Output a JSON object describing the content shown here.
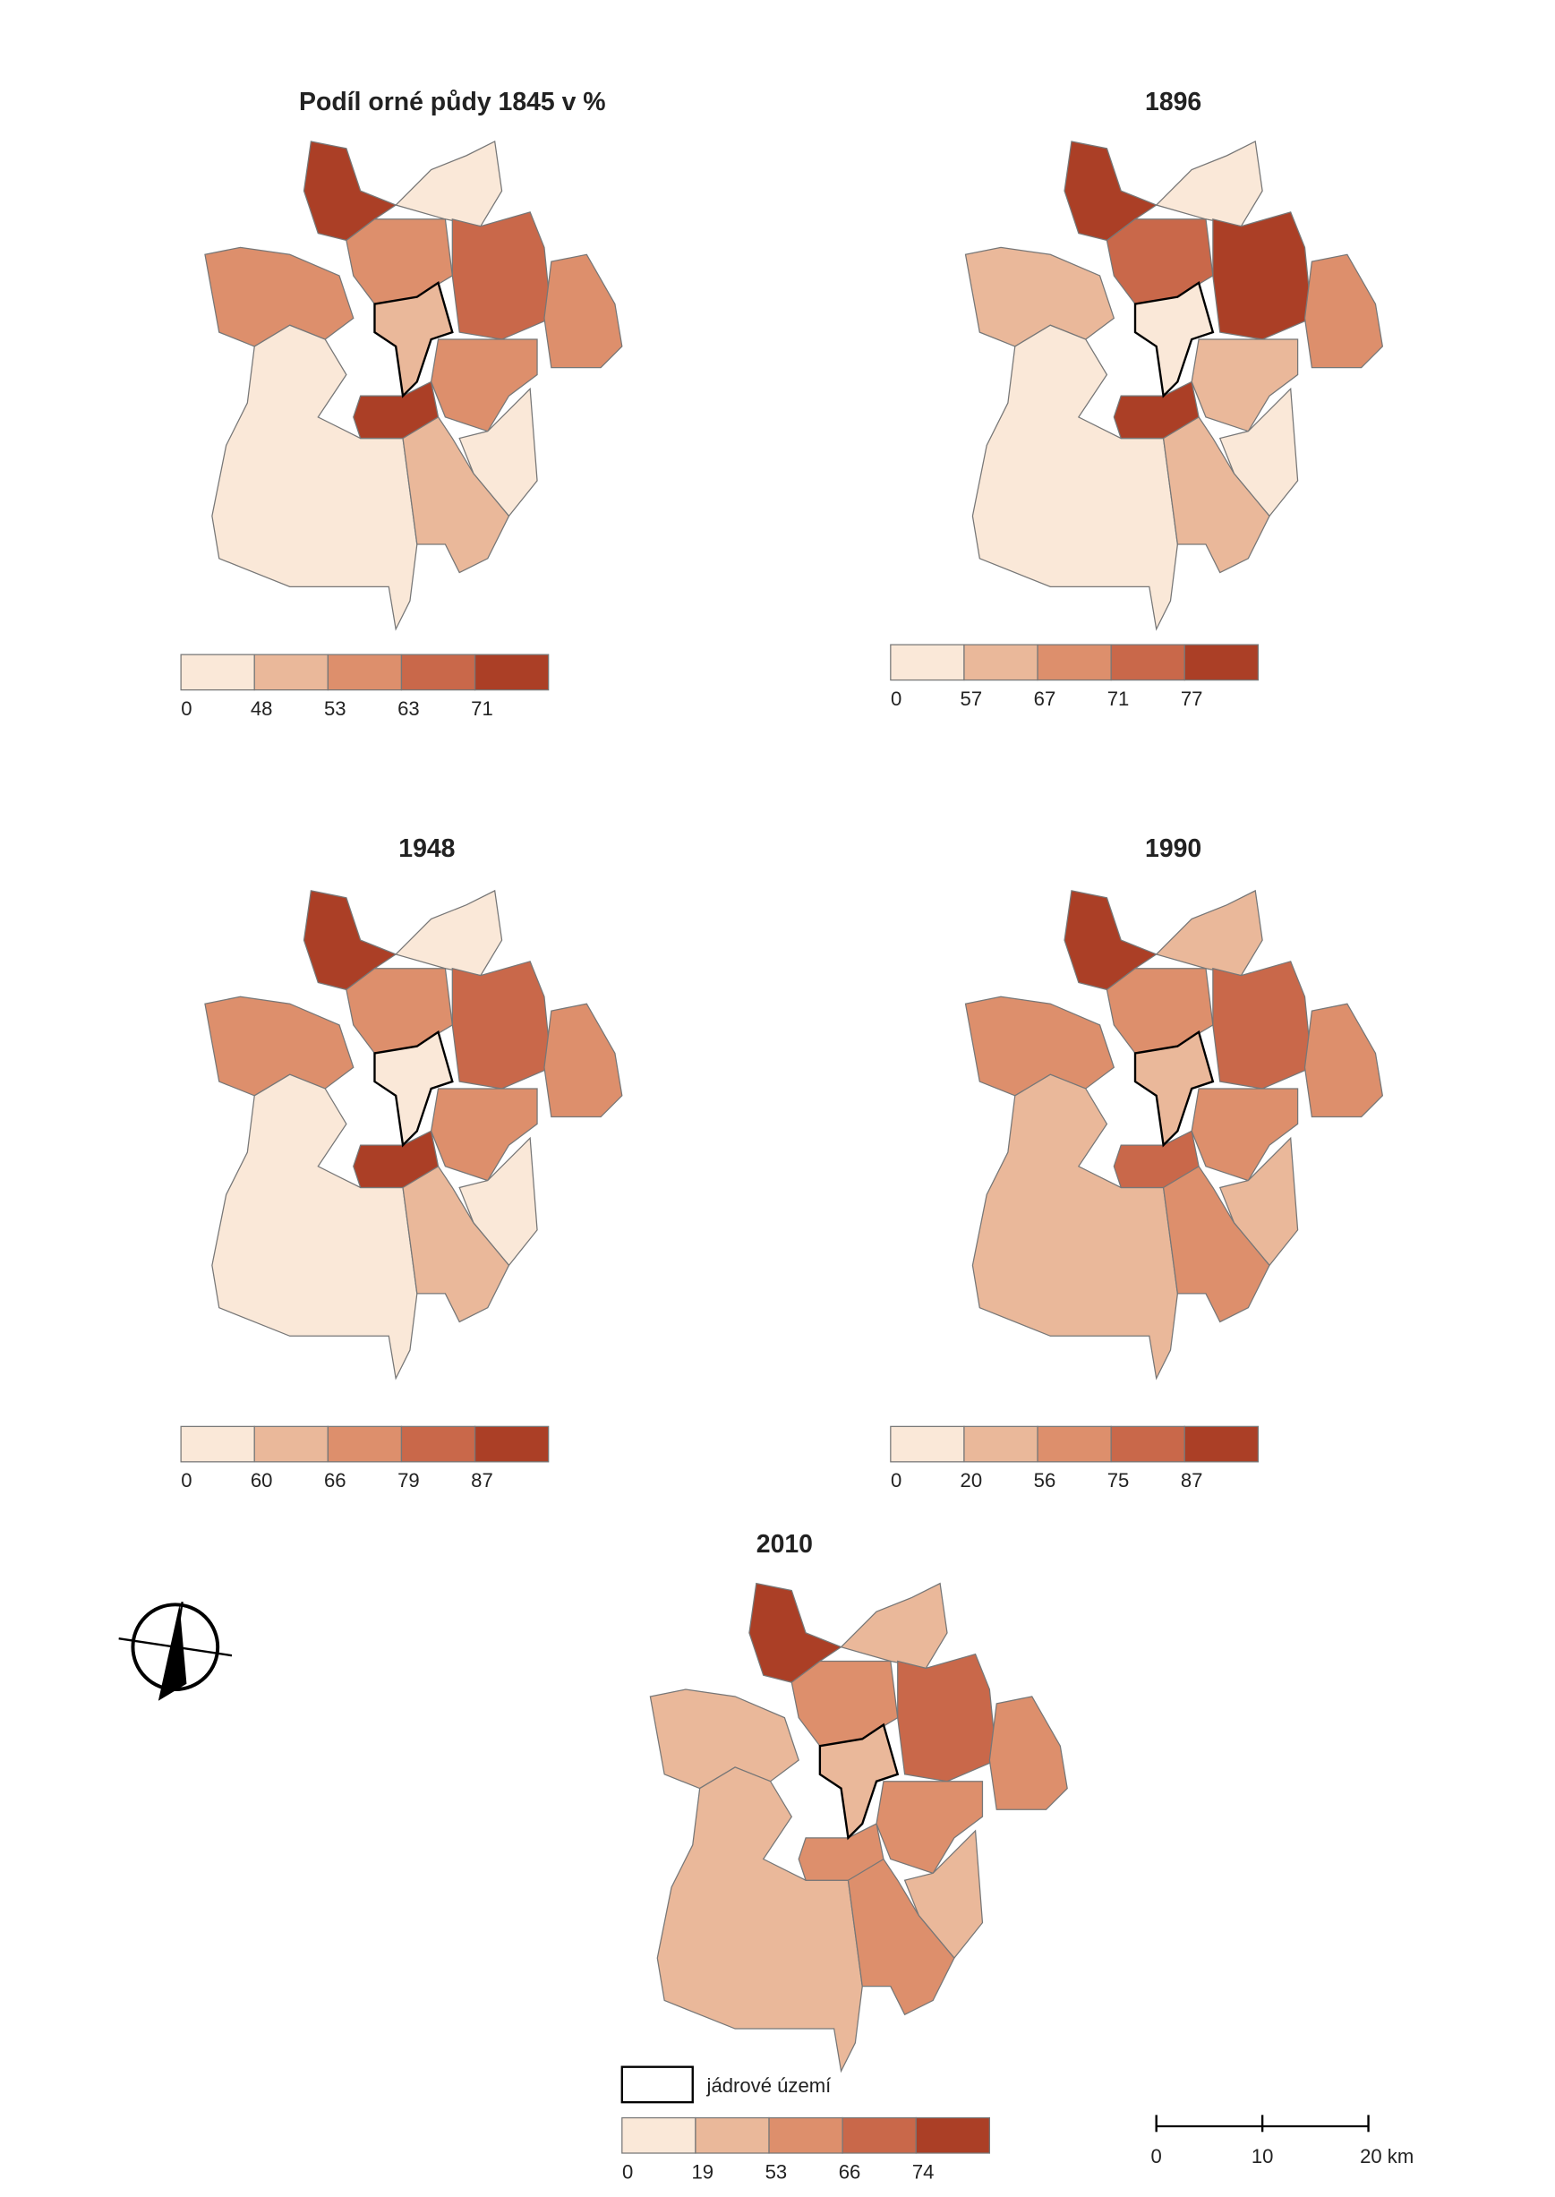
{
  "maps": [
    {
      "title": "Podíl orné půdy 1845 v %",
      "legend": [
        0,
        48,
        53,
        63,
        71
      ]
    },
    {
      "title": "1896",
      "legend": [
        0,
        57,
        67,
        71,
        77
      ]
    },
    {
      "title": "1948",
      "legend": [
        0,
        60,
        66,
        79,
        87
      ]
    },
    {
      "title": "1990",
      "legend": [
        0,
        20,
        56,
        75,
        87
      ]
    },
    {
      "title": "2010",
      "legend": [
        0,
        19,
        53,
        66,
        74
      ]
    }
  ],
  "core_label": "jádrové území",
  "scale_bar": [
    0,
    10,
    "20 km"
  ]
}
